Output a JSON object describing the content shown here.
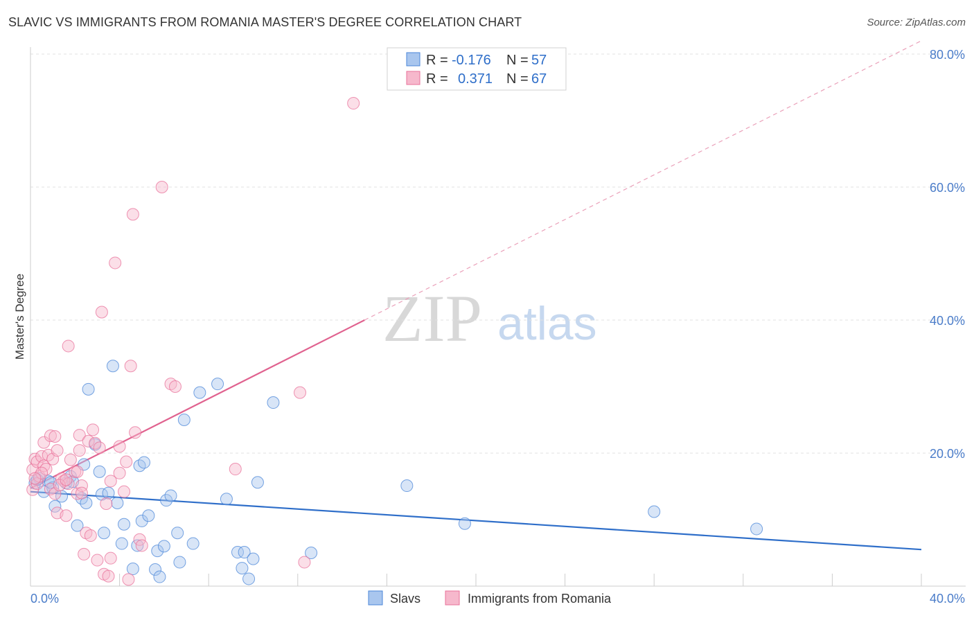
{
  "header": {
    "title": "SLAVIC VS IMMIGRANTS FROM ROMANIA MASTER'S DEGREE CORRELATION CHART",
    "source": "Source: ZipAtlas.com"
  },
  "watermark": {
    "zip": "ZIP",
    "atlas": "atlas"
  },
  "colors": {
    "slavs": "#4a86d8",
    "slavs_fill": "#a9c6ee",
    "romania": "#e8709a",
    "romania_fill": "#f6b8cc",
    "axis_text": "#4a7cc9",
    "grid": "#e0e0e0"
  },
  "legend": {
    "r_label": "R =",
    "n_label": "N =",
    "entries": [
      {
        "r": "-0.176",
        "n": "57"
      },
      {
        "r": "0.371",
        "n": "67"
      }
    ]
  },
  "chart_data": {
    "type": "scatter",
    "title": "SLAVIC VS IMMIGRANTS FROM ROMANIA MASTER'S DEGREE CORRELATION CHART",
    "xlabel": "",
    "ylabel": "Master's Degree",
    "xlim": [
      0,
      40
    ],
    "ylim": [
      0,
      80
    ],
    "x_ticks": [
      {
        "value": 0,
        "label": "0.0%"
      },
      {
        "value": 40,
        "label": "40.0%"
      }
    ],
    "y_ticks": [
      {
        "value": 20,
        "label": "20.0%"
      },
      {
        "value": 40,
        "label": "40.0%"
      },
      {
        "value": 60,
        "label": "60.0%"
      },
      {
        "value": 80,
        "label": "80.0%"
      }
    ],
    "series": [
      {
        "name": "Slavs",
        "r": -0.176,
        "n": 57,
        "trend": {
          "x0": 0,
          "y0": 14.2,
          "x1": 40,
          "y1": 5.5
        },
        "points": [
          [
            0.2,
            15.5
          ],
          [
            0.4,
            16.2
          ],
          [
            0.6,
            14.2
          ],
          [
            0.8,
            15.8
          ],
          [
            1.0,
            14.8
          ],
          [
            1.1,
            12.0
          ],
          [
            1.4,
            13.5
          ],
          [
            1.6,
            15.5
          ],
          [
            1.8,
            16.5
          ],
          [
            2.1,
            9.1
          ],
          [
            2.3,
            13.2
          ],
          [
            2.4,
            18.3
          ],
          [
            2.5,
            12.5
          ],
          [
            2.6,
            29.6
          ],
          [
            2.9,
            21.3
          ],
          [
            3.1,
            17.2
          ],
          [
            3.2,
            13.8
          ],
          [
            3.3,
            8.0
          ],
          [
            3.5,
            14.0
          ],
          [
            3.7,
            33.1
          ],
          [
            3.9,
            12.5
          ],
          [
            4.1,
            6.4
          ],
          [
            4.2,
            9.3
          ],
          [
            4.6,
            2.6
          ],
          [
            4.8,
            6.1
          ],
          [
            4.9,
            18.1
          ],
          [
            5.0,
            9.8
          ],
          [
            5.1,
            18.6
          ],
          [
            5.3,
            10.6
          ],
          [
            5.6,
            2.5
          ],
          [
            5.7,
            5.3
          ],
          [
            5.8,
            1.4
          ],
          [
            6.0,
            6.0
          ],
          [
            6.1,
            12.9
          ],
          [
            6.3,
            13.6
          ],
          [
            6.6,
            8.0
          ],
          [
            6.7,
            3.6
          ],
          [
            6.9,
            25.0
          ],
          [
            7.3,
            6.4
          ],
          [
            7.6,
            29.1
          ],
          [
            8.4,
            30.4
          ],
          [
            8.8,
            13.1
          ],
          [
            9.3,
            5.1
          ],
          [
            9.5,
            2.7
          ],
          [
            9.6,
            5.1
          ],
          [
            9.8,
            1.1
          ],
          [
            10.0,
            4.1
          ],
          [
            10.2,
            15.6
          ],
          [
            10.9,
            27.6
          ],
          [
            12.6,
            5.0
          ],
          [
            16.9,
            15.1
          ],
          [
            19.5,
            9.4
          ],
          [
            28.0,
            11.2
          ],
          [
            32.6,
            8.6
          ],
          [
            0.3,
            16.0
          ],
          [
            0.9,
            15.6
          ],
          [
            1.9,
            15.7
          ]
        ]
      },
      {
        "name": "Immigrants from Romania",
        "r": 0.371,
        "n": 67,
        "trend": {
          "x0": 0,
          "y0": 14.7,
          "x1": 15,
          "y1": 40.0
        },
        "trend_extension": {
          "x0": 15,
          "y0": 40.0,
          "x1": 40,
          "y1": 82.0
        },
        "points": [
          [
            0.1,
            17.5
          ],
          [
            0.1,
            14.5
          ],
          [
            0.2,
            19.1
          ],
          [
            0.3,
            15.4
          ],
          [
            0.3,
            18.7
          ],
          [
            0.4,
            16.5
          ],
          [
            0.5,
            19.5
          ],
          [
            0.6,
            18.1
          ],
          [
            0.6,
            21.6
          ],
          [
            0.7,
            17.6
          ],
          [
            0.8,
            19.7
          ],
          [
            0.9,
            22.6
          ],
          [
            0.9,
            14.6
          ],
          [
            1.0,
            19.1
          ],
          [
            1.1,
            22.5
          ],
          [
            1.1,
            13.9
          ],
          [
            1.2,
            20.4
          ],
          [
            1.2,
            11.0
          ],
          [
            1.4,
            16.2
          ],
          [
            1.5,
            15.8
          ],
          [
            1.6,
            10.6
          ],
          [
            1.7,
            15.4
          ],
          [
            1.7,
            36.1
          ],
          [
            1.8,
            19.0
          ],
          [
            2.0,
            17.2
          ],
          [
            2.1,
            13.9
          ],
          [
            2.1,
            17.2
          ],
          [
            2.2,
            22.7
          ],
          [
            2.2,
            20.4
          ],
          [
            2.3,
            15.1
          ],
          [
            2.4,
            4.8
          ],
          [
            2.5,
            8.0
          ],
          [
            2.6,
            21.8
          ],
          [
            2.7,
            7.6
          ],
          [
            2.8,
            23.5
          ],
          [
            2.9,
            21.5
          ],
          [
            3.0,
            3.9
          ],
          [
            3.1,
            20.8
          ],
          [
            3.2,
            41.2
          ],
          [
            3.3,
            1.8
          ],
          [
            3.4,
            12.4
          ],
          [
            3.5,
            1.5
          ],
          [
            3.6,
            4.2
          ],
          [
            3.8,
            48.6
          ],
          [
            4.0,
            17.0
          ],
          [
            4.0,
            21.0
          ],
          [
            4.2,
            14.2
          ],
          [
            4.3,
            18.7
          ],
          [
            4.4,
            1.0
          ],
          [
            4.5,
            33.1
          ],
          [
            4.6,
            55.9
          ],
          [
            4.7,
            23.1
          ],
          [
            4.9,
            7.0
          ],
          [
            5.0,
            6.1
          ],
          [
            5.9,
            60.0
          ],
          [
            6.3,
            30.4
          ],
          [
            6.5,
            30.0
          ],
          [
            9.2,
            17.6
          ],
          [
            12.1,
            29.1
          ],
          [
            12.3,
            3.6
          ],
          [
            14.5,
            72.6
          ],
          [
            0.5,
            17.0
          ],
          [
            1.3,
            15.2
          ],
          [
            1.6,
            16.0
          ],
          [
            2.3,
            14.0
          ],
          [
            0.2,
            16.2
          ],
          [
            3.6,
            15.8
          ]
        ]
      }
    ]
  }
}
